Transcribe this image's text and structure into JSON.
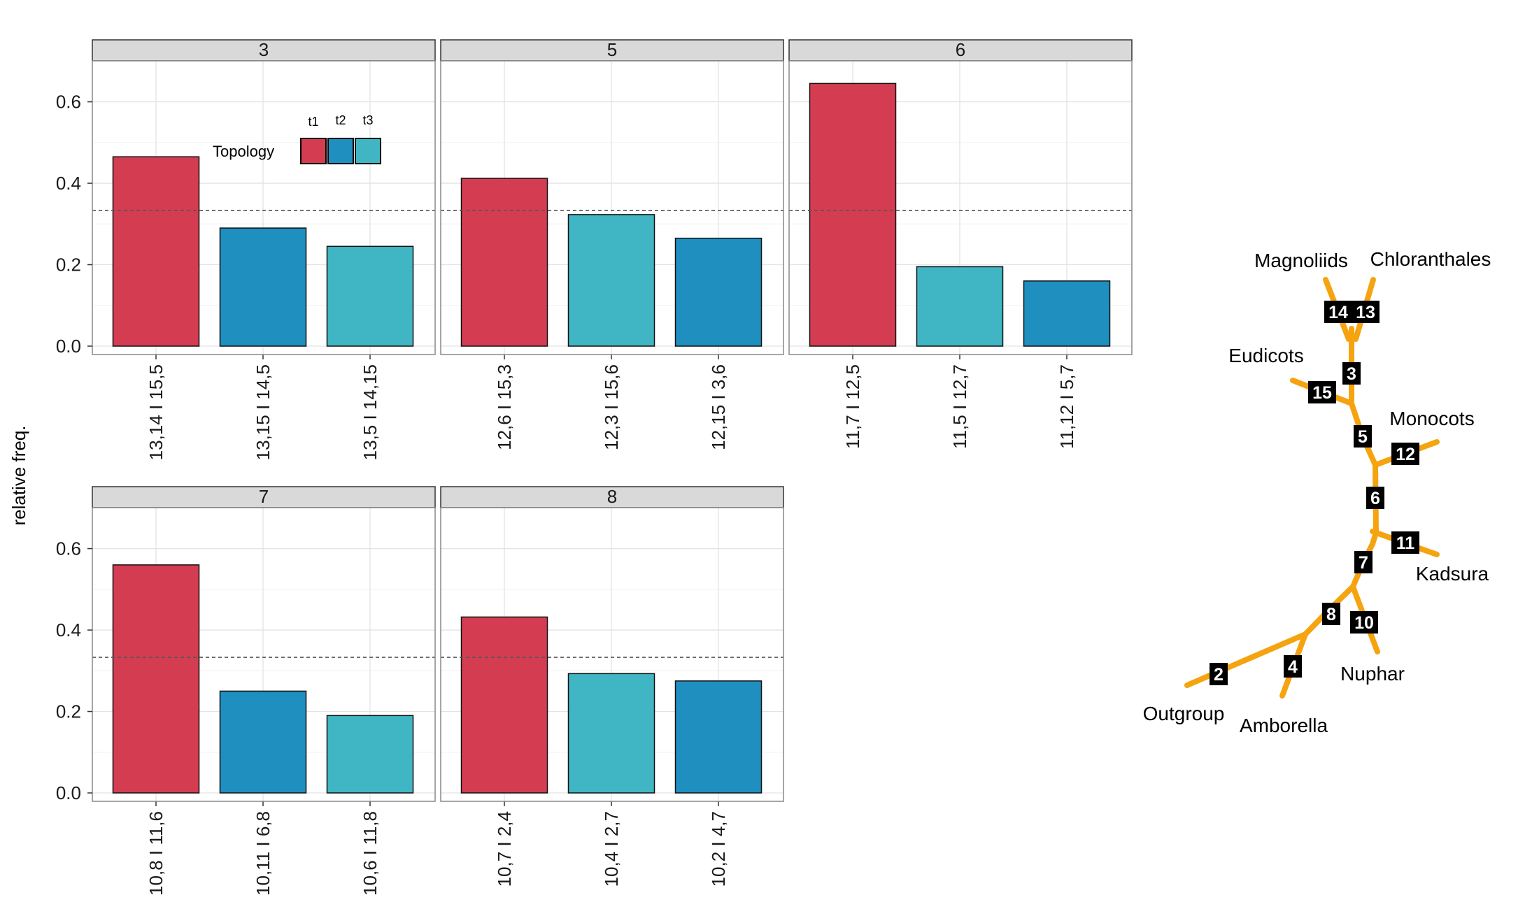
{
  "ylabel": "relative freq.",
  "colors": {
    "t1": "#d43d51",
    "t2": "#1f8fc0",
    "t3": "#40b6c4",
    "tree": "#f5a30f",
    "strip": "#d9d9d9",
    "node": "#000000"
  },
  "legend": {
    "title": "Topology",
    "labels": [
      "t1",
      "t2",
      "t3"
    ]
  },
  "chart_data": {
    "type": "bar",
    "ylim": [
      0,
      0.68
    ],
    "yticks": [
      0.0,
      0.2,
      0.4,
      0.6
    ],
    "ytick_labels": [
      "0.0",
      "0.2",
      "0.4",
      "0.6"
    ],
    "reference_line": 0.333,
    "ylabel": "relative freq.",
    "grid": true,
    "legend_position": "inside top of first panel",
    "facets": [
      {
        "label": "3",
        "bars": [
          {
            "category": "13,14 I 15,5",
            "topology": "t1",
            "value": 0.465
          },
          {
            "category": "13,15 I 14,5",
            "topology": "t2",
            "value": 0.29
          },
          {
            "category": "13,5 I 14,15",
            "topology": "t3",
            "value": 0.245
          }
        ]
      },
      {
        "label": "5",
        "bars": [
          {
            "category": "12,6 I 15,3",
            "topology": "t1",
            "value": 0.412
          },
          {
            "category": "12,3 I 15,6",
            "topology": "t3",
            "value": 0.323
          },
          {
            "category": "12,15 I 3,6",
            "topology": "t2",
            "value": 0.265
          }
        ]
      },
      {
        "label": "6",
        "bars": [
          {
            "category": "11,7 I 12,5",
            "topology": "t1",
            "value": 0.645
          },
          {
            "category": "11,5 I 12,7",
            "topology": "t3",
            "value": 0.195
          },
          {
            "category": "11,12 I 5,7",
            "topology": "t2",
            "value": 0.16
          }
        ]
      },
      {
        "label": "7",
        "bars": [
          {
            "category": "10,8 I 11,6",
            "topology": "t1",
            "value": 0.56
          },
          {
            "category": "10,11 I 6,8",
            "topology": "t2",
            "value": 0.25
          },
          {
            "category": "10,6 I 11,8",
            "topology": "t3",
            "value": 0.19
          }
        ]
      },
      {
        "label": "8",
        "bars": [
          {
            "category": "10,7 I 2,4",
            "topology": "t1",
            "value": 0.432
          },
          {
            "category": "10,4 I 2,7",
            "topology": "t3",
            "value": 0.293
          },
          {
            "category": "10,2 I 4,7",
            "topology": "t2",
            "value": 0.275
          }
        ]
      }
    ]
  },
  "tree": {
    "taxa": [
      "Magnoliids",
      "Chloranthales",
      "Eudicots",
      "Monocots",
      "Kadsura",
      "Nuphar",
      "Outgroup",
      "Amborella"
    ],
    "node_labels": [
      "14",
      "13",
      "3",
      "15",
      "5",
      "12",
      "6",
      "11",
      "7",
      "8",
      "10",
      "2",
      "4"
    ]
  }
}
